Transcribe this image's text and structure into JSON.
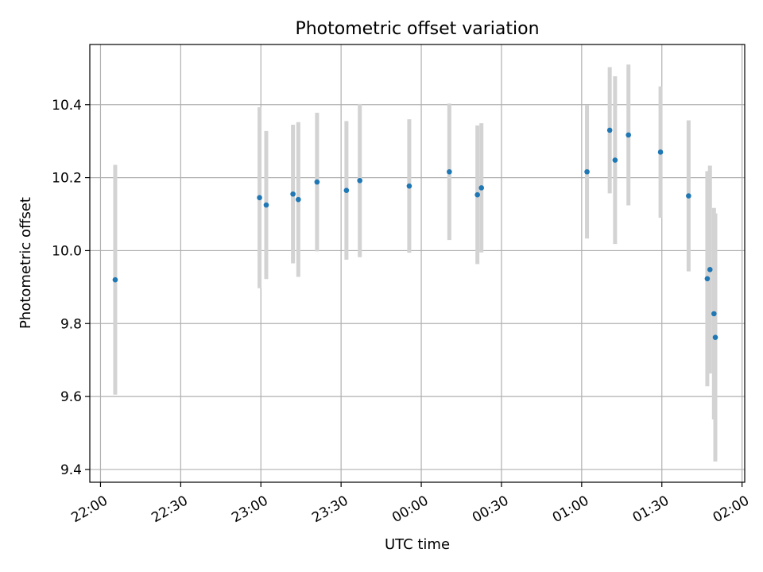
{
  "chart_data": {
    "type": "scatter",
    "title": "Photometric offset variation",
    "xlabel": "UTC time",
    "ylabel": "Photometric offset",
    "x_ticks": [
      "22:00",
      "22:30",
      "23:00",
      "23:30",
      "00:00",
      "00:30",
      "01:00",
      "01:30",
      "02:00"
    ],
    "y_ticks": [
      "9.4",
      "9.6",
      "9.8",
      "10.0",
      "10.2",
      "10.4"
    ],
    "xlim": [
      "21:56",
      "02:01"
    ],
    "ylim": [
      9.365,
      10.565
    ],
    "grid": true,
    "marker_color": "#1f77b4",
    "errorbar_color": "#d3d3d3",
    "series": [
      {
        "points": [
          {
            "x": "22:05:30",
            "y": 9.92,
            "err": 0.315
          },
          {
            "x": "22:59:30",
            "y": 10.145,
            "err": 0.248
          },
          {
            "x": "23:02:00",
            "y": 10.125,
            "err": 0.203
          },
          {
            "x": "23:12:00",
            "y": 10.155,
            "err": 0.19
          },
          {
            "x": "23:14:00",
            "y": 10.14,
            "err": 0.212
          },
          {
            "x": "23:21:00",
            "y": 10.188,
            "err": 0.19
          },
          {
            "x": "23:32:00",
            "y": 10.165,
            "err": 0.19
          },
          {
            "x": "23:37:00",
            "y": 10.192,
            "err": 0.21
          },
          {
            "x": "23:55:30",
            "y": 10.177,
            "err": 0.183
          },
          {
            "x": "00:10:30",
            "y": 10.216,
            "err": 0.187
          },
          {
            "x": "00:21:00",
            "y": 10.153,
            "err": 0.19
          },
          {
            "x": "00:22:30",
            "y": 10.172,
            "err": 0.177
          },
          {
            "x": "01:02:00",
            "y": 10.216,
            "err": 0.183
          },
          {
            "x": "01:10:30",
            "y": 10.33,
            "err": 0.173
          },
          {
            "x": "01:12:30",
            "y": 10.248,
            "err": 0.23
          },
          {
            "x": "01:17:30",
            "y": 10.317,
            "err": 0.193
          },
          {
            "x": "01:29:30",
            "y": 10.27,
            "err": 0.18
          },
          {
            "x": "01:40:00",
            "y": 10.15,
            "err": 0.207
          },
          {
            "x": "01:47:00",
            "y": 9.923,
            "err": 0.295
          },
          {
            "x": "01:48:00",
            "y": 9.948,
            "err": 0.285
          },
          {
            "x": "01:49:30",
            "y": 9.827,
            "err": 0.29
          },
          {
            "x": "01:50:00",
            "y": 9.762,
            "err": 0.34
          }
        ]
      }
    ]
  }
}
